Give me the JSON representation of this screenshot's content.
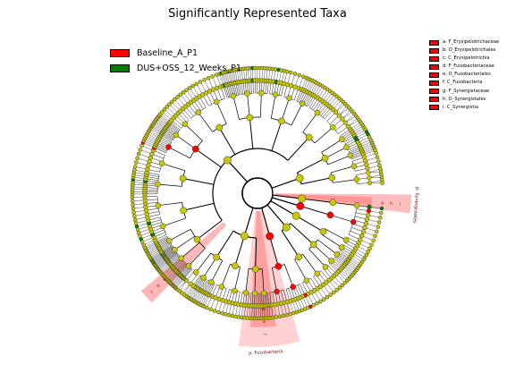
{
  "title": "Significantly Represented Taxa",
  "legend": [
    {
      "label": "Baseline_A_P1",
      "color": "#ff0000"
    },
    {
      "label": "DUS+OSS_12_Weeks_P1",
      "color": "#008000"
    }
  ],
  "key": [
    "a: F_Erysipelotrichaceae",
    "b: O_Erysipelotrichales",
    "c: C_Erysipelotrichia",
    "d: F_Fusobacteriaceae",
    "e: O_Fusobacteriales",
    "f: C_Fusobacteria",
    "g: F_Synergistaceae",
    "h: O_Synergistales",
    "i: C_Synergistia"
  ],
  "chart_data": {
    "type": "cladogram",
    "title": "Significantly Represented Taxa",
    "ring_levels": [
      "phylum",
      "class",
      "order",
      "family",
      "genus"
    ],
    "neutral_node_color": "#c8c800",
    "highlight_colors": {
      "Baseline_A_P1": "#ff0000",
      "DUS+OSS_12_Weeks_P1": "#008000"
    },
    "highlighted_clades": [
      {
        "phylum": "Synergistetes",
        "enriched_in": "Baseline_A_P1",
        "labels": [
          "i",
          "h",
          "g"
        ]
      },
      {
        "phylum": "Fusobacteria",
        "enriched_in": "Baseline_A_P1",
        "labels": [
          "f",
          "e",
          "d"
        ]
      },
      {
        "phylum": "Firmicutes",
        "enriched_in": "Baseline_A_P1",
        "labels": [
          "c",
          "b",
          "a"
        ]
      }
    ]
  }
}
